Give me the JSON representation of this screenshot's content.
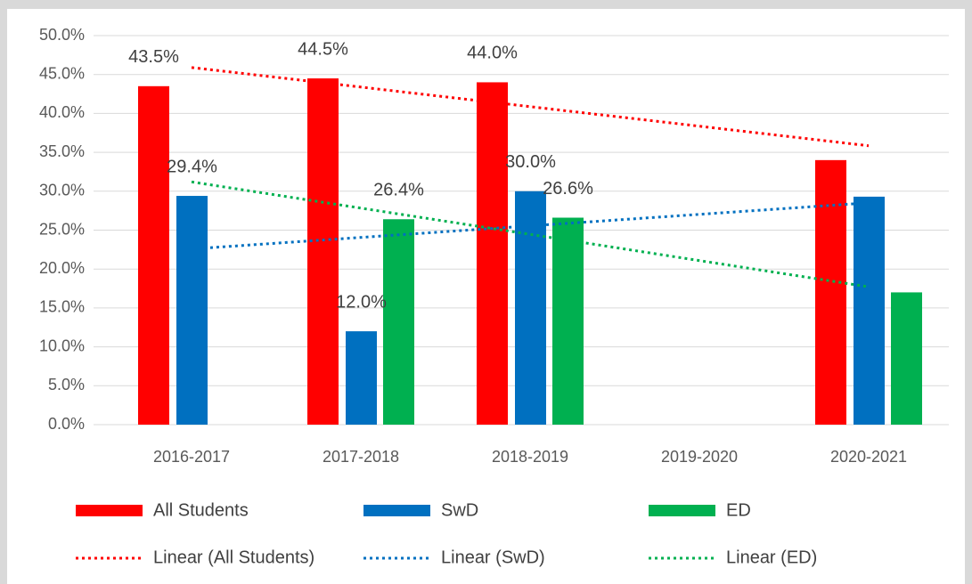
{
  "chart_data": {
    "type": "bar",
    "categories": [
      "2016-2017",
      "2017-2018",
      "2018-2019",
      "2019-2020",
      "2020-2021"
    ],
    "series": [
      {
        "name": "All Students",
        "color": "#ff0000",
        "values": [
          43.5,
          44.5,
          44.0,
          null,
          34.0
        ],
        "value_labels": [
          "43.5%",
          "44.5%",
          "44.0%",
          null,
          null
        ],
        "trendline": {
          "type": "linear",
          "name": "Linear (All Students)"
        }
      },
      {
        "name": "SwD",
        "color": "#0070c0",
        "values": [
          29.4,
          12.0,
          30.0,
          null,
          29.3
        ],
        "value_labels": [
          "29.4%",
          "12.0%",
          "30.0%",
          null,
          null
        ],
        "trendline": {
          "type": "linear",
          "name": "Linear (SwD)"
        }
      },
      {
        "name": "ED",
        "color": "#00b050",
        "values": [
          null,
          26.4,
          26.6,
          null,
          17.0
        ],
        "value_labels": [
          null,
          "26.4%",
          "26.6%",
          null,
          null
        ],
        "trendline": {
          "type": "linear",
          "name": "Linear (ED)"
        }
      }
    ],
    "ylim": [
      0,
      50
    ],
    "yticks": [
      {
        "value": 0,
        "label": "0.0%"
      },
      {
        "value": 5,
        "label": "5.0%"
      },
      {
        "value": 10,
        "label": "10.0%"
      },
      {
        "value": 15,
        "label": "15.0%"
      },
      {
        "value": 20,
        "label": "20.0%"
      },
      {
        "value": 25,
        "label": "25.0%"
      },
      {
        "value": 30,
        "label": "30.0%"
      },
      {
        "value": 35,
        "label": "35.0%"
      },
      {
        "value": 40,
        "label": "40.0%"
      },
      {
        "value": 45,
        "label": "45.0%"
      },
      {
        "value": 50,
        "label": "50.0%"
      }
    ],
    "grid": true,
    "legend": "bottom"
  }
}
